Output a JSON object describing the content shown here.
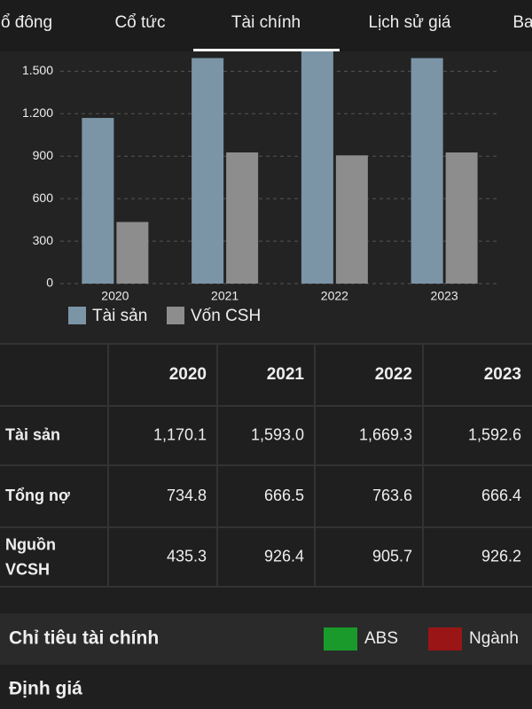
{
  "tabs": [
    "ổ đông",
    "Cổ tức",
    "Tài chính",
    "Lịch sử giá",
    "Ba"
  ],
  "chart_data": {
    "type": "bar",
    "categories": [
      "2020",
      "2021",
      "2022",
      "2023"
    ],
    "series": [
      {
        "name": "Tài sản",
        "color": "#7b95a7",
        "values": [
          1170.1,
          1593.0,
          1669.3,
          1592.6
        ]
      },
      {
        "name": "Vốn CSH",
        "color": "#8d8d8d",
        "values": [
          435.3,
          926.4,
          905.7,
          926.2
        ]
      }
    ],
    "ylim": [
      0,
      1640
    ],
    "yticks": [
      0,
      300,
      600,
      900,
      {
        "value": 1200,
        "label": "1.200"
      },
      {
        "value": 1500,
        "label": "1.500"
      }
    ],
    "grid": true
  },
  "table": {
    "columns": [
      "2020",
      "2021",
      "2022",
      "2023"
    ],
    "rows": [
      {
        "label": "Tài sản",
        "values": [
          "1,170.1",
          "1,593.0",
          "1,669.3",
          "1,592.6"
        ]
      },
      {
        "label": "Tổng nợ",
        "values": [
          "734.8",
          "666.5",
          "763.6",
          "666.4"
        ]
      },
      {
        "label": "Nguồn VCSH",
        "values": [
          "435.3",
          "926.4",
          "905.7",
          "926.2"
        ]
      }
    ]
  },
  "section": {
    "title": "Chỉ tiêu tài chính",
    "legend": [
      {
        "name": "ABS",
        "color": "#1a9a2a"
      },
      {
        "name": "Ngành",
        "color": "#9a1515"
      }
    ]
  },
  "footer_title": "Định giá"
}
